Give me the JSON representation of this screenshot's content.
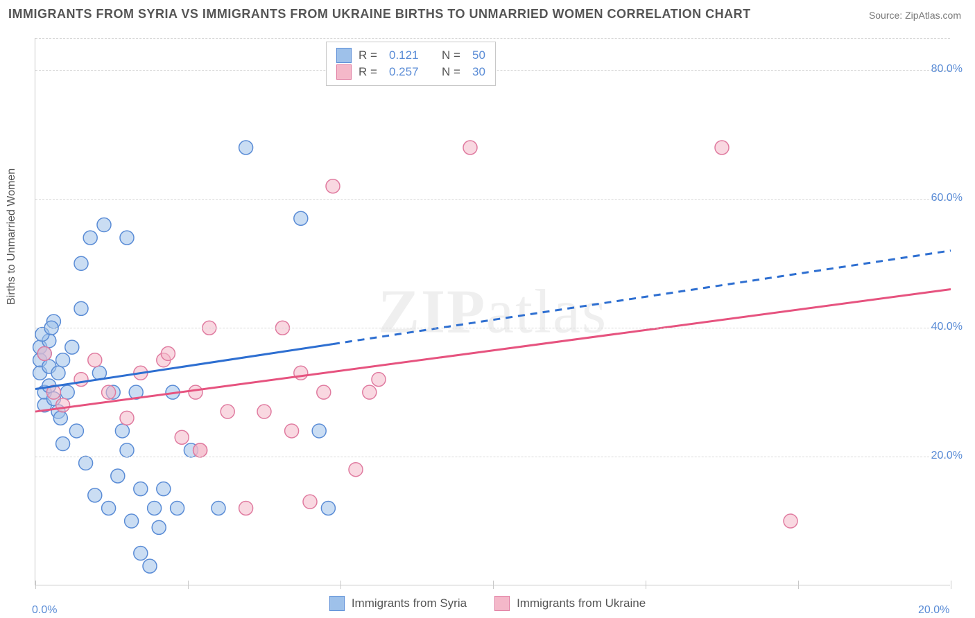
{
  "title": "IMMIGRANTS FROM SYRIA VS IMMIGRANTS FROM UKRAINE BIRTHS TO UNMARRIED WOMEN CORRELATION CHART",
  "source_label": "Source: ZipAtlas.com",
  "y_axis_label": "Births to Unmarried Women",
  "watermark": {
    "bold": "ZIP",
    "light": "atlas"
  },
  "chart": {
    "type": "scatter",
    "xlim": [
      0,
      20
    ],
    "ylim": [
      0,
      85
    ],
    "x_ticks": [
      0,
      3.33,
      6.66,
      10,
      13.33,
      16.66,
      20
    ],
    "x_tick_labels": [
      "0.0%",
      "",
      "",
      "",
      "",
      "",
      "20.0%"
    ],
    "y_ticks": [
      20,
      40,
      60,
      80
    ],
    "y_tick_labels": [
      "20.0%",
      "40.0%",
      "60.0%",
      "80.0%"
    ],
    "background_color": "#ffffff",
    "grid_color_h": "#d8d8d8",
    "axis_color": "#c8c8c8",
    "label_color": "#5a8cd6",
    "marker_radius": 10,
    "marker_opacity": 0.55,
    "series": [
      {
        "name": "Immigrants from Syria",
        "color_fill": "#9ec1ea",
        "color_stroke": "#5a8cd6",
        "line_color": "#2e6fd1",
        "r_value": "0.121",
        "n_value": "50",
        "trend": {
          "x1": 0,
          "y1": 30.5,
          "x2": 20,
          "y2": 52,
          "solid_until_x": 6.5
        },
        "points": [
          [
            0.1,
            37
          ],
          [
            0.1,
            35
          ],
          [
            0.1,
            33
          ],
          [
            0.2,
            30
          ],
          [
            0.2,
            28
          ],
          [
            0.2,
            36
          ],
          [
            0.3,
            38
          ],
          [
            0.3,
            34
          ],
          [
            0.3,
            31
          ],
          [
            0.4,
            29
          ],
          [
            0.4,
            41
          ],
          [
            0.5,
            33
          ],
          [
            0.5,
            27
          ],
          [
            0.6,
            35
          ],
          [
            0.6,
            22
          ],
          [
            0.7,
            30
          ],
          [
            0.8,
            37
          ],
          [
            0.9,
            24
          ],
          [
            1.0,
            50
          ],
          [
            1.0,
            43
          ],
          [
            1.1,
            19
          ],
          [
            1.2,
            54
          ],
          [
            1.3,
            14
          ],
          [
            1.4,
            33
          ],
          [
            1.5,
            56
          ],
          [
            1.6,
            12
          ],
          [
            1.7,
            30
          ],
          [
            1.8,
            17
          ],
          [
            1.9,
            24
          ],
          [
            2.0,
            54
          ],
          [
            2.0,
            21
          ],
          [
            2.1,
            10
          ],
          [
            2.2,
            30
          ],
          [
            2.3,
            15
          ],
          [
            2.3,
            5
          ],
          [
            2.5,
            3
          ],
          [
            2.6,
            12
          ],
          [
            2.7,
            9
          ],
          [
            2.8,
            15
          ],
          [
            3.0,
            30
          ],
          [
            3.1,
            12
          ],
          [
            3.4,
            21
          ],
          [
            4.0,
            12
          ],
          [
            4.6,
            68
          ],
          [
            5.8,
            57
          ],
          [
            6.2,
            24
          ],
          [
            6.4,
            12
          ],
          [
            0.15,
            39
          ],
          [
            0.35,
            40
          ],
          [
            0.55,
            26
          ]
        ]
      },
      {
        "name": "Immigrants from Ukraine",
        "color_fill": "#f4b8c9",
        "color_stroke": "#e07ba0",
        "line_color": "#e6537f",
        "r_value": "0.257",
        "n_value": "30",
        "trend": {
          "x1": 0,
          "y1": 27,
          "x2": 20,
          "y2": 46,
          "solid_until_x": 20
        },
        "points": [
          [
            0.2,
            36
          ],
          [
            0.4,
            30
          ],
          [
            0.6,
            28
          ],
          [
            1.0,
            32
          ],
          [
            1.3,
            35
          ],
          [
            1.6,
            30
          ],
          [
            2.0,
            26
          ],
          [
            2.3,
            33
          ],
          [
            2.8,
            35
          ],
          [
            3.2,
            23
          ],
          [
            3.5,
            30
          ],
          [
            3.6,
            21
          ],
          [
            3.8,
            40
          ],
          [
            4.2,
            27
          ],
          [
            4.6,
            12
          ],
          [
            5.0,
            27
          ],
          [
            5.4,
            40
          ],
          [
            5.6,
            24
          ],
          [
            5.8,
            33
          ],
          [
            6.0,
            13
          ],
          [
            6.3,
            30
          ],
          [
            6.5,
            62
          ],
          [
            7.0,
            18
          ],
          [
            7.3,
            30
          ],
          [
            7.5,
            32
          ],
          [
            9.5,
            68
          ],
          [
            3.6,
            21
          ],
          [
            15.0,
            68
          ],
          [
            16.5,
            10
          ],
          [
            2.9,
            36
          ]
        ]
      }
    ]
  },
  "legend_top": {
    "r_label": "R =",
    "n_label": "N ="
  },
  "legend_bottom": {
    "items": [
      "Immigrants from Syria",
      "Immigrants from Ukraine"
    ]
  }
}
